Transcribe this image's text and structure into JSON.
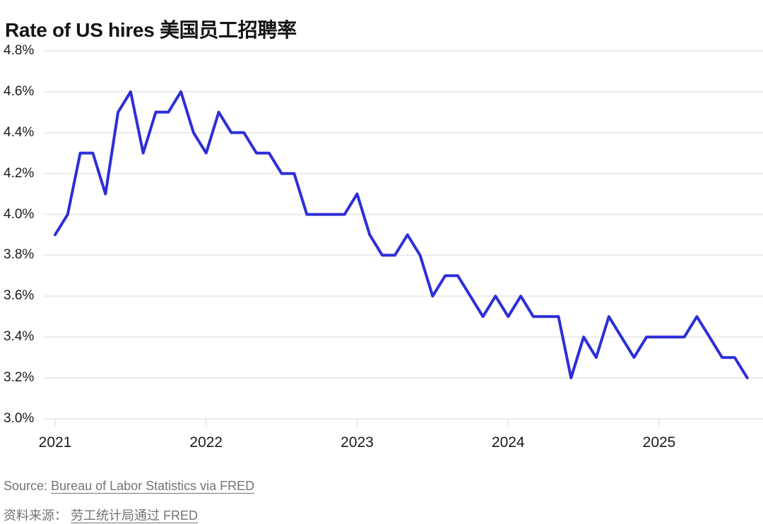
{
  "title": "Rate of US hires 美国员工招聘率",
  "source": {
    "en_prefix": "Source:",
    "en_link": "Bureau of Labor Statistics via FRED",
    "zh_prefix": "资料来源：",
    "zh_link": "劳工统计局通过 FRED"
  },
  "chart_data": {
    "type": "line",
    "title": "Rate of US hires 美国员工招聘率",
    "unit": "%",
    "frequency": "monthly",
    "x_start": "2021-01",
    "x_end": "2025-08",
    "xtick_labels": [
      "2021",
      "2022",
      "2023",
      "2024",
      "2025"
    ],
    "ytick_labels": [
      "4.8%",
      "4.6%",
      "4.4%",
      "4.2%",
      "4.0%",
      "3.8%",
      "3.6%",
      "3.4%",
      "3.2%",
      "3.0%"
    ],
    "ylim": [
      3.0,
      4.8
    ],
    "grid": true,
    "legend": "none",
    "line_color": "#2d2ed8",
    "grid_color": "#eaeaee",
    "series": [
      {
        "name": "US hires rate",
        "values": [
          3.9,
          4.0,
          4.3,
          4.3,
          4.1,
          4.5,
          4.6,
          4.3,
          4.5,
          4.5,
          4.6,
          4.4,
          4.3,
          4.5,
          4.4,
          4.4,
          4.3,
          4.3,
          4.2,
          4.2,
          4.0,
          4.0,
          4.0,
          4.0,
          4.1,
          3.9,
          3.8,
          3.8,
          3.9,
          3.8,
          3.6,
          3.7,
          3.7,
          3.6,
          3.5,
          3.6,
          3.5,
          3.6,
          3.5,
          3.5,
          3.5,
          3.2,
          3.4,
          3.3,
          3.5,
          3.4,
          3.3,
          3.4,
          3.4,
          3.4,
          3.4,
          3.5,
          3.4,
          3.3,
          3.3,
          3.2
        ]
      }
    ]
  }
}
